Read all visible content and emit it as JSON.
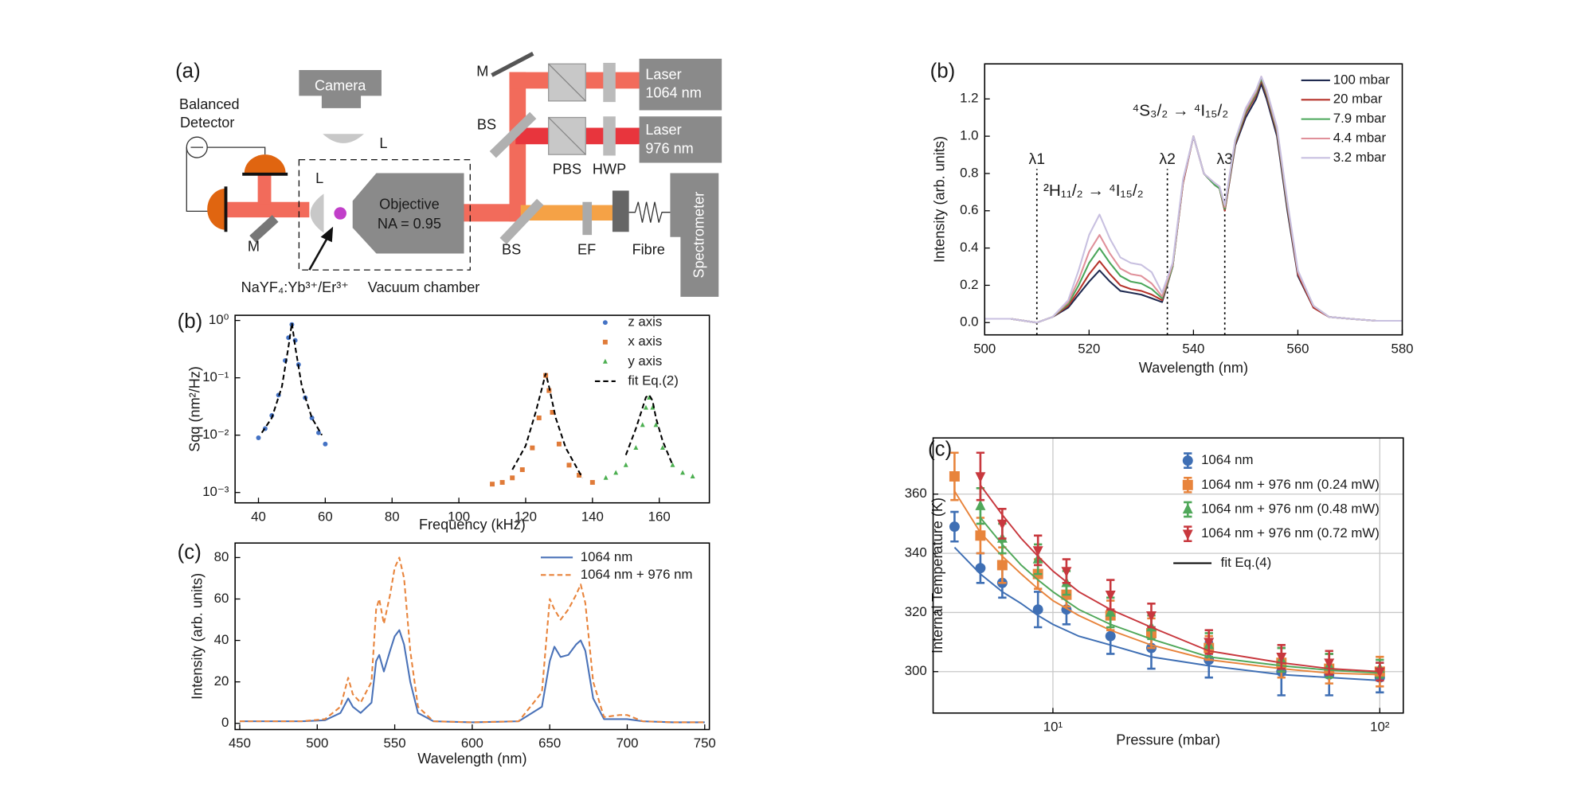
{
  "diagram": {
    "panel": "(a)",
    "labels": {
      "camera": "Camera",
      "lens_top": "L",
      "lens_chamber": "L",
      "detector": [
        "Balanced",
        "Detector"
      ],
      "mirror_left": "M",
      "mirror_top": "M",
      "bs_top": "BS",
      "bs_bottom": "BS",
      "pbs": "PBS",
      "hwp": "HWP",
      "laser_1064": [
        "Laser",
        "1064 nm"
      ],
      "laser_976": [
        "Laser",
        "976 nm"
      ],
      "objective": [
        "Objective",
        "NA = 0.95"
      ],
      "ef": "EF",
      "fibre": "Fibre",
      "spectrometer": "Spectrometer",
      "particle": "NaYF₄:Yb³⁺/Er³⁺",
      "chamber": "Vacuum chamber"
    }
  },
  "chart_data": [
    {
      "panel": "(b)",
      "type": "scatter",
      "xlabel": "Frequency (kHz)",
      "ylabel": "Sqq (nm²/Hz)",
      "xlim": [
        33,
        175
      ],
      "xticks": [
        40,
        60,
        80,
        100,
        120,
        140,
        160
      ],
      "ylog": true,
      "ylim": [
        0.00066,
        1.23
      ],
      "yticks": [
        {
          "value": 1,
          "label": "10⁰"
        },
        {
          "value": 0.1,
          "label": "10⁻¹"
        },
        {
          "value": 0.01,
          "label": "10⁻²"
        },
        {
          "value": 0.001,
          "label": "10⁻³"
        }
      ],
      "legend": "upper right",
      "series": [
        {
          "name": "z axis",
          "color": "#4472c4",
          "marker": "circle",
          "x": [
            40,
            42,
            44,
            46,
            48,
            49,
            50,
            51,
            52,
            54,
            56,
            58,
            60
          ],
          "values": [
            0.009,
            0.013,
            0.022,
            0.05,
            0.2,
            0.5,
            0.85,
            0.45,
            0.17,
            0.045,
            0.02,
            0.011,
            0.007
          ]
        },
        {
          "name": "x axis",
          "color": "#e07b39",
          "marker": "square",
          "x": [
            110,
            113,
            116,
            119,
            122,
            124,
            126,
            127,
            128,
            130,
            133,
            136,
            140
          ],
          "values": [
            0.0014,
            0.0015,
            0.0018,
            0.0025,
            0.006,
            0.02,
            0.11,
            0.06,
            0.025,
            0.007,
            0.003,
            0.002,
            0.0015
          ]
        },
        {
          "name": "y axis",
          "color": "#4caf50",
          "marker": "triangle",
          "x": [
            144,
            147,
            150,
            153,
            155,
            156,
            157,
            158,
            159,
            161,
            164,
            167,
            170
          ],
          "values": [
            0.0018,
            0.0022,
            0.003,
            0.006,
            0.015,
            0.03,
            0.045,
            0.03,
            0.015,
            0.006,
            0.003,
            0.0022,
            0.0019
          ]
        },
        {
          "name": "fit Eq.(2)",
          "color": "#000000",
          "line": "dashed",
          "x": [
            41,
            44,
            47,
            49,
            50,
            51,
            53,
            56,
            59,
            null,
            116,
            120,
            123,
            125,
            126,
            127,
            129,
            132,
            137,
            null,
            150,
            153,
            155,
            156,
            157,
            158,
            159,
            161,
            164
          ],
          "values": [
            0.011,
            0.02,
            0.07,
            0.35,
            0.9,
            0.35,
            0.07,
            0.02,
            0.01,
            null,
            0.0025,
            0.0065,
            0.025,
            0.07,
            0.12,
            0.07,
            0.02,
            0.006,
            0.0018,
            null,
            0.0045,
            0.013,
            0.03,
            0.046,
            0.05,
            0.04,
            0.02,
            0.008,
            0.003
          ]
        }
      ]
    },
    {
      "panel": "(c)",
      "type": "line",
      "xlabel": "Wavelength (nm)",
      "ylabel": "Intensity (arb. units)",
      "xlim": [
        447,
        753
      ],
      "xticks": [
        450,
        500,
        550,
        600,
        650,
        700,
        750
      ],
      "ylim": [
        -3,
        87
      ],
      "yticks": [
        0,
        20,
        40,
        60,
        80
      ],
      "legend": "upper right",
      "x": [
        450,
        470,
        490,
        505,
        515,
        520,
        523,
        528,
        535,
        538,
        540,
        543,
        547,
        550,
        553,
        556,
        560,
        565,
        575,
        600,
        630,
        645,
        650,
        653,
        657,
        662,
        667,
        670,
        673,
        678,
        685,
        695,
        700,
        710,
        730,
        750
      ],
      "series": [
        {
          "name": "1064 nm",
          "color": "#4a72b8",
          "line": "solid",
          "values": [
            1,
            1,
            1,
            1.5,
            5,
            12,
            8,
            5,
            10,
            30,
            33,
            25,
            35,
            42,
            45,
            38,
            20,
            5,
            1,
            0.5,
            1,
            8,
            30,
            37,
            32,
            33,
            38,
            40,
            35,
            12,
            2,
            2,
            2,
            1,
            0.5,
            0.5
          ]
        },
        {
          "name": "1064 nm + 976 nm",
          "color": "#e8843c",
          "line": "dashed",
          "values": [
            1,
            1,
            1,
            2,
            8,
            22,
            14,
            10,
            20,
            55,
            60,
            48,
            62,
            75,
            80,
            70,
            35,
            8,
            1,
            0.5,
            1,
            15,
            60,
            55,
            50,
            55,
            62,
            67,
            58,
            20,
            3,
            4,
            4,
            1,
            0.5,
            0.5
          ]
        }
      ]
    },
    {
      "panel": "(b)",
      "type": "line",
      "xlabel": "Wavelength (nm)",
      "ylabel": "Intensity (arb. units)",
      "xlim": [
        500,
        580
      ],
      "xticks": [
        500,
        520,
        540,
        560,
        580
      ],
      "ylim": [
        -0.066,
        1.388
      ],
      "yticks": [
        {
          "value": 0,
          "label": "0.0"
        },
        0.2,
        0.4,
        0.6,
        0.8,
        {
          "value": 1,
          "label": "1.0"
        },
        1.2
      ],
      "legend": "upper right",
      "markers": [
        {
          "x": 510,
          "label": "λ1"
        },
        {
          "x": 535,
          "label": "λ2"
        },
        {
          "x": 546,
          "label": "λ3"
        }
      ],
      "annotations": [
        "²H₁₁/₂ → ⁴I₁₅/₂",
        "⁴S₃/₂ → ⁴I₁₅/₂"
      ],
      "x": [
        500,
        505,
        510,
        513,
        516,
        518,
        520,
        522,
        524,
        526,
        528,
        530,
        532,
        534,
        536,
        538,
        540,
        542,
        544,
        545,
        546,
        548,
        550,
        552,
        553,
        554,
        556,
        558,
        560,
        563,
        566,
        570,
        575,
        580
      ],
      "series": [
        {
          "name": "100 mbar",
          "color": "#1f2a50",
          "line": "solid",
          "values": [
            0.02,
            0.02,
            0.0,
            0.03,
            0.08,
            0.15,
            0.22,
            0.28,
            0.22,
            0.17,
            0.16,
            0.15,
            0.13,
            0.11,
            0.3,
            0.75,
            1.0,
            0.8,
            0.74,
            0.72,
            0.6,
            0.95,
            1.1,
            1.2,
            1.28,
            1.2,
            1.0,
            0.6,
            0.25,
            0.08,
            0.03,
            0.02,
            0.01,
            0.01
          ]
        },
        {
          "name": "20 mbar",
          "color": "#b5322a",
          "line": "solid",
          "values": [
            0.02,
            0.02,
            0.0,
            0.03,
            0.09,
            0.17,
            0.26,
            0.33,
            0.26,
            0.2,
            0.18,
            0.17,
            0.15,
            0.12,
            0.3,
            0.75,
            1.0,
            0.8,
            0.74,
            0.72,
            0.6,
            0.96,
            1.12,
            1.22,
            1.3,
            1.22,
            1.02,
            0.62,
            0.26,
            0.08,
            0.03,
            0.02,
            0.01,
            0.01
          ]
        },
        {
          "name": "7.9 mbar",
          "color": "#4aa65a",
          "line": "solid",
          "values": [
            0.02,
            0.02,
            0.0,
            0.03,
            0.1,
            0.2,
            0.32,
            0.4,
            0.32,
            0.25,
            0.22,
            0.21,
            0.18,
            0.13,
            0.3,
            0.76,
            1.0,
            0.8,
            0.74,
            0.72,
            0.61,
            0.97,
            1.13,
            1.23,
            1.31,
            1.23,
            1.03,
            0.63,
            0.27,
            0.09,
            0.03,
            0.02,
            0.01,
            0.01
          ]
        },
        {
          "name": "4.4 mbar",
          "color": "#e0909a",
          "line": "solid",
          "values": [
            0.02,
            0.02,
            0.0,
            0.03,
            0.11,
            0.23,
            0.38,
            0.47,
            0.37,
            0.29,
            0.26,
            0.25,
            0.21,
            0.14,
            0.31,
            0.76,
            1.0,
            0.8,
            0.75,
            0.73,
            0.62,
            0.98,
            1.14,
            1.24,
            1.32,
            1.24,
            1.04,
            0.64,
            0.27,
            0.09,
            0.03,
            0.02,
            0.01,
            0.01
          ]
        },
        {
          "name": "3.2 mbar",
          "color": "#c8c0e0",
          "line": "solid",
          "values": [
            0.02,
            0.02,
            0.0,
            0.03,
            0.12,
            0.28,
            0.47,
            0.58,
            0.45,
            0.35,
            0.32,
            0.31,
            0.27,
            0.16,
            0.32,
            0.77,
            1.0,
            0.8,
            0.75,
            0.73,
            0.63,
            0.98,
            1.15,
            1.25,
            1.32,
            1.25,
            1.05,
            0.65,
            0.28,
            0.09,
            0.03,
            0.02,
            0.01,
            0.01
          ]
        }
      ]
    },
    {
      "panel": "(c)",
      "type": "errorbar",
      "xlabel": "Pressure (mbar)",
      "ylabel": "Internal Temperature (K)",
      "xlog": true,
      "xlim": [
        4.3,
        118
      ],
      "xticks": [
        {
          "value": 10,
          "label": "10¹"
        },
        {
          "value": 100,
          "label": "10²"
        }
      ],
      "ylim": [
        286,
        379
      ],
      "yticks": [
        300,
        320,
        340,
        360
      ],
      "grid": true,
      "legend": "upper right",
      "x": [
        5,
        6,
        7,
        9,
        11,
        15,
        20,
        30,
        50,
        70,
        100
      ],
      "fit_label": "fit Eq.(4)",
      "fit_color": "#000000",
      "fit_x": [
        5,
        6,
        7,
        8,
        9,
        10,
        12,
        15,
        20,
        30,
        50,
        70,
        100
      ],
      "series": [
        {
          "name": "1064 nm",
          "color": "#3f6fb4",
          "marker": "circle",
          "values": [
            349,
            335,
            330,
            321,
            321,
            312,
            308,
            304,
            300,
            299,
            298
          ],
          "errors": [
            5,
            5,
            5,
            6,
            5,
            6,
            7,
            6,
            8,
            7,
            5
          ],
          "fit_values": [
            342,
            333,
            327,
            323,
            319,
            316,
            312,
            309,
            305,
            302,
            299,
            298,
            297
          ]
        },
        {
          "name": "1064 nm + 976 nm (0.24 mW)",
          "color": "#e8843c",
          "marker": "square",
          "values": [
            366,
            346,
            336,
            333,
            326,
            319,
            313,
            308,
            303,
            301,
            300
          ],
          "errors": [
            8,
            6,
            6,
            5,
            4,
            5,
            5,
            4,
            5,
            5,
            5
          ],
          "fit_values": [
            361,
            347,
            339,
            333,
            328,
            324,
            319,
            314,
            309,
            304,
            301,
            299.5,
            299
          ]
        },
        {
          "name": "1064 nm + 976 nm (0.48 mW)",
          "color": "#50a85a",
          "marker": "triangle",
          "values": [
            null,
            356,
            345,
            338,
            330,
            320,
            315,
            309,
            304,
            302,
            301
          ],
          "errors": [
            null,
            6,
            5,
            5,
            4,
            5,
            4,
            4,
            4,
            4,
            3
          ],
          "fit_values": [
            null,
            352,
            343,
            336,
            331,
            327,
            321,
            316,
            311,
            305,
            302,
            300.5,
            299.5
          ]
        },
        {
          "name": "1064 nm + 976 nm (0.72 mW)",
          "color": "#c8383e",
          "marker": "triangle-down",
          "values": [
            null,
            366,
            350,
            341,
            334,
            326,
            319,
            310,
            305,
            303,
            300
          ],
          "errors": [
            null,
            8,
            5,
            5,
            4,
            5,
            4,
            4,
            4,
            4,
            3
          ],
          "fit_values": [
            null,
            363,
            353,
            345,
            339,
            334,
            327,
            321,
            315,
            307,
            303,
            301,
            300
          ]
        }
      ]
    }
  ]
}
